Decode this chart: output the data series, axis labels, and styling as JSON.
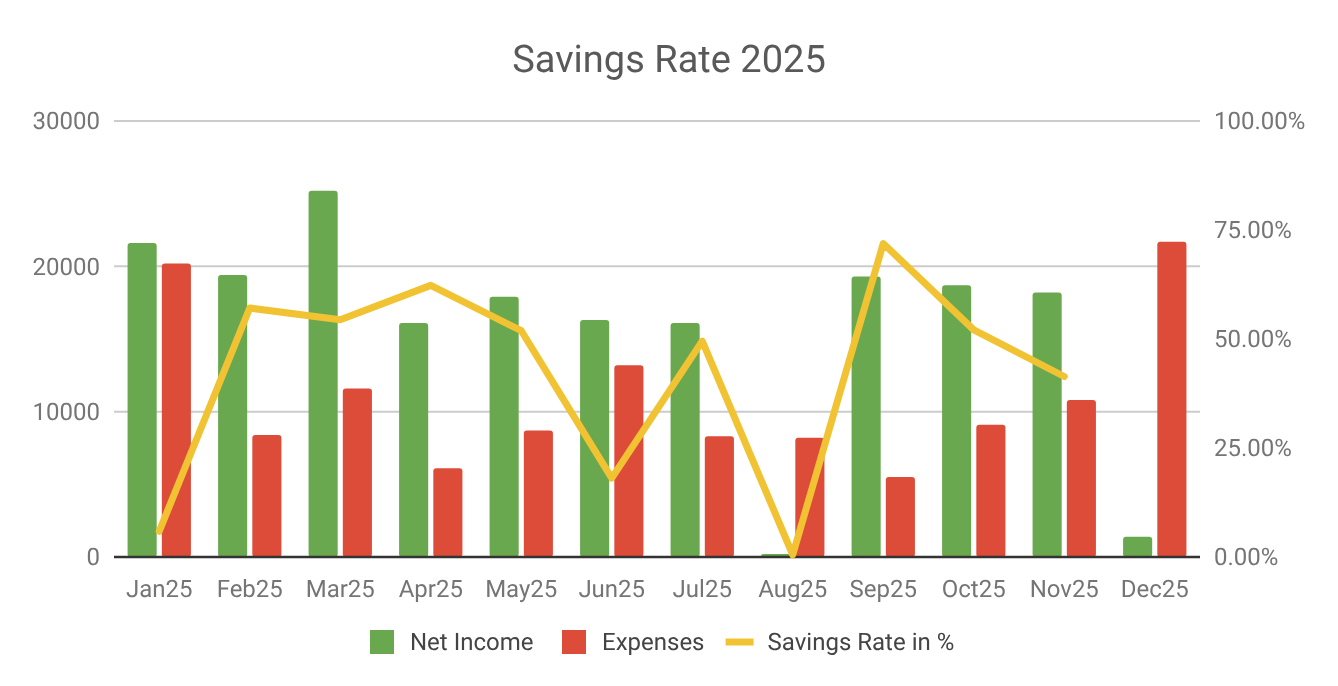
{
  "chart_data": {
    "type": "bar",
    "title": "Savings Rate 2025",
    "categories": [
      "Jan25",
      "Feb25",
      "Mar25",
      "Apr25",
      "May25",
      "Jun25",
      "Jul25",
      "Aug25",
      "Sep25",
      "Oct25",
      "Nov25",
      "Dec25"
    ],
    "series": [
      {
        "name": "Net Income",
        "color": "#6aa84f",
        "values": [
          21600,
          19400,
          25200,
          16100,
          17900,
          16300,
          16100,
          200,
          19300,
          18700,
          18200,
          1400
        ]
      },
      {
        "name": "Expenses",
        "color": "#dd4b39",
        "values": [
          20200,
          8400,
          11600,
          6100,
          8700,
          13200,
          8300,
          8200,
          5500,
          9100,
          10800,
          21700
        ]
      },
      {
        "name": "Savings Rate in %",
        "type": "line",
        "axis": "y2",
        "color": "#f1c232",
        "values": [
          5.9,
          57.1,
          54.4,
          62.3,
          51.9,
          18.1,
          49.5,
          0.5,
          71.9,
          52.1,
          41.4,
          null
        ]
      }
    ],
    "ylim": [
      0,
      30000
    ],
    "yticks": [
      0,
      10000,
      20000,
      30000
    ],
    "y2lim": [
      0,
      100
    ],
    "y2ticks": [
      {
        "value": 0,
        "label": "0.00%"
      },
      {
        "value": 25,
        "label": "25.00%"
      },
      {
        "value": 50,
        "label": "50.00%"
      },
      {
        "value": 75,
        "label": "75.00%"
      },
      {
        "value": 100,
        "label": "100.00%"
      }
    ],
    "grid": "y",
    "legend": "bottom"
  }
}
